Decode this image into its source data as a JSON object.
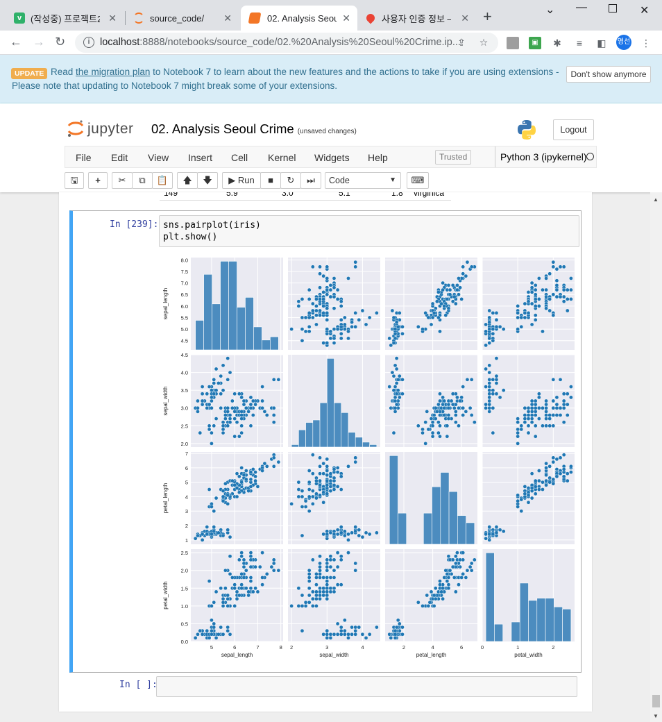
{
  "browser": {
    "tabs": [
      {
        "title": "(작성중) 프로젝트2",
        "favicon_color": "#2fb16a",
        "favicon_glyph": "v"
      },
      {
        "title": "source_code/",
        "favicon_color": "#f37626",
        "favicon_glyph": "jupyter-icon"
      },
      {
        "title": "02. Analysis Seoul",
        "favicon_color": "#f37626",
        "favicon_glyph": "notebook-icon"
      },
      {
        "title": "사용자 인증 정보 –",
        "favicon_color": "#34a853",
        "favicon_glyph": "maps-pin-icon"
      }
    ],
    "url_host": "localhost",
    "url_rest": ":8888/notebooks/source_code/02.%20Analysis%20Seoul%20Crime.ip...",
    "profile_initials": "영선"
  },
  "notice": {
    "badge": "UPDATE",
    "text_before": "Read ",
    "link": "the migration plan",
    "text_after": " to Notebook 7 to learn about the new features and the actions to take if you are using extensions -",
    "line2": "Please note that updating to Notebook 7 might break some of your extensions.",
    "dismiss_label": "Don't show anymore"
  },
  "header": {
    "brand": "jupyter",
    "notebook_title": "02. Analysis Seoul Crime",
    "save_status": "(unsaved changes)",
    "logout_label": "Logout"
  },
  "menubar": {
    "items": [
      "File",
      "Edit",
      "View",
      "Insert",
      "Cell",
      "Kernel",
      "Widgets",
      "Help"
    ],
    "trusted": "Trusted",
    "kernel": "Python 3 (ipykernel)"
  },
  "toolbar": {
    "run_label": "Run",
    "cell_type": "Code"
  },
  "prev_output_row": [
    "149",
    "5.9",
    "3.0",
    "5.1",
    "1.8",
    "virginica"
  ],
  "cells": [
    {
      "prompt": "In [239]:",
      "code": "sns.pairplot(iris)\nplt.show()"
    },
    {
      "prompt": "In [ ]:",
      "code": ""
    }
  ],
  "colors": {
    "accent": "#42a5f5",
    "point": "#1f77b4",
    "hist": "#4c8cbf",
    "panel_bg": "#eaeaf2",
    "notice_bg": "#d9edf7"
  },
  "chart_data": {
    "type": "scatter",
    "title": "",
    "variables": [
      "sepal_length",
      "sepal_width",
      "petal_length",
      "petal_width"
    ],
    "axis_ranges": {
      "sepal_length": [
        4.1,
        8.1
      ],
      "sepal_width": [
        1.9,
        4.5
      ],
      "petal_length": [
        0.7,
        7.1
      ],
      "petal_width": [
        0.0,
        2.6
      ]
    },
    "y_ticks": {
      "sepal_length": [
        "4.5",
        "5.0",
        "5.5",
        "6.0",
        "6.5",
        "7.0",
        "7.5",
        "8.0"
      ],
      "sepal_width": [
        "2.0",
        "2.5",
        "3.0",
        "3.5",
        "4.0",
        "4.5"
      ],
      "petal_length": [
        "1",
        "2",
        "3",
        "4",
        "5",
        "6",
        "7"
      ],
      "petal_width": [
        "0.0",
        "0.5",
        "1.0",
        "1.5",
        "2.0",
        "2.5"
      ]
    },
    "x_ticks": {
      "sepal_length": [
        "5",
        "6",
        "7",
        "8"
      ],
      "sepal_width": [
        "2",
        "3",
        "4"
      ],
      "petal_length": [
        "2",
        "4",
        "6"
      ],
      "petal_width": [
        "0",
        "1",
        "2"
      ]
    },
    "grid": true,
    "diag_hist": {
      "sepal_length": {
        "edges": [
          4.3,
          4.66,
          5.02,
          5.38,
          5.74,
          6.1,
          6.46,
          6.82,
          7.18,
          7.54,
          7.9
        ],
        "counts": [
          9,
          23,
          14,
          27,
          27,
          13,
          16,
          7,
          3,
          4
        ]
      },
      "sepal_width": {
        "edges": [
          2.0,
          2.2,
          2.4,
          2.6,
          2.8,
          3.0,
          3.2,
          3.4,
          3.6,
          3.8,
          4.0,
          4.2,
          4.4
        ],
        "counts": [
          1,
          7,
          10,
          11,
          18,
          36,
          18,
          14,
          6,
          4,
          2,
          1
        ]
      },
      "petal_length": {
        "edges": [
          1.0,
          1.59,
          2.18,
          2.77,
          3.36,
          3.95,
          4.54,
          5.13,
          5.72,
          6.31,
          6.9
        ],
        "counts": [
          37,
          13,
          0,
          0,
          13,
          24,
          30,
          22,
          12,
          9
        ]
      },
      "petal_width": {
        "edges": [
          0.1,
          0.34,
          0.58,
          0.82,
          1.06,
          1.3,
          1.54,
          1.78,
          2.02,
          2.26,
          2.5
        ],
        "counts": [
          41,
          8,
          0,
          9,
          27,
          19,
          20,
          20,
          16,
          15
        ]
      }
    },
    "samples": [
      [
        5.1,
        3.5,
        1.4,
        0.2
      ],
      [
        4.9,
        3.0,
        1.4,
        0.2
      ],
      [
        4.7,
        3.2,
        1.3,
        0.2
      ],
      [
        4.6,
        3.1,
        1.5,
        0.2
      ],
      [
        5.0,
        3.6,
        1.4,
        0.2
      ],
      [
        5.4,
        3.9,
        1.7,
        0.4
      ],
      [
        4.6,
        3.4,
        1.4,
        0.3
      ],
      [
        5.0,
        3.4,
        1.5,
        0.2
      ],
      [
        4.4,
        2.9,
        1.4,
        0.2
      ],
      [
        4.9,
        3.1,
        1.5,
        0.1
      ],
      [
        5.4,
        3.7,
        1.5,
        0.2
      ],
      [
        4.8,
        3.4,
        1.6,
        0.2
      ],
      [
        4.8,
        3.0,
        1.4,
        0.1
      ],
      [
        4.3,
        3.0,
        1.1,
        0.1
      ],
      [
        5.8,
        4.0,
        1.2,
        0.2
      ],
      [
        5.7,
        4.4,
        1.5,
        0.4
      ],
      [
        5.4,
        3.9,
        1.3,
        0.4
      ],
      [
        5.1,
        3.5,
        1.4,
        0.3
      ],
      [
        5.7,
        3.8,
        1.7,
        0.3
      ],
      [
        5.1,
        3.8,
        1.5,
        0.3
      ],
      [
        5.4,
        3.4,
        1.7,
        0.2
      ],
      [
        5.1,
        3.7,
        1.5,
        0.4
      ],
      [
        4.6,
        3.6,
        1.0,
        0.2
      ],
      [
        5.1,
        3.3,
        1.7,
        0.5
      ],
      [
        4.8,
        3.4,
        1.9,
        0.2
      ],
      [
        5.0,
        3.0,
        1.6,
        0.2
      ],
      [
        5.0,
        3.4,
        1.6,
        0.4
      ],
      [
        5.2,
        3.5,
        1.5,
        0.2
      ],
      [
        5.2,
        3.4,
        1.4,
        0.2
      ],
      [
        4.7,
        3.2,
        1.6,
        0.2
      ],
      [
        4.8,
        3.1,
        1.6,
        0.2
      ],
      [
        5.4,
        3.4,
        1.5,
        0.4
      ],
      [
        5.2,
        4.1,
        1.5,
        0.1
      ],
      [
        5.5,
        4.2,
        1.4,
        0.2
      ],
      [
        4.9,
        3.1,
        1.5,
        0.2
      ],
      [
        5.0,
        3.2,
        1.2,
        0.2
      ],
      [
        5.5,
        3.5,
        1.3,
        0.2
      ],
      [
        4.9,
        3.6,
        1.4,
        0.1
      ],
      [
        4.4,
        3.0,
        1.3,
        0.2
      ],
      [
        5.1,
        3.4,
        1.5,
        0.2
      ],
      [
        5.0,
        3.5,
        1.3,
        0.3
      ],
      [
        4.5,
        2.3,
        1.3,
        0.3
      ],
      [
        4.4,
        3.2,
        1.3,
        0.2
      ],
      [
        5.0,
        3.5,
        1.6,
        0.6
      ],
      [
        5.1,
        3.8,
        1.9,
        0.4
      ],
      [
        4.8,
        3.0,
        1.4,
        0.3
      ],
      [
        5.1,
        3.8,
        1.6,
        0.2
      ],
      [
        4.6,
        3.2,
        1.4,
        0.2
      ],
      [
        5.3,
        3.7,
        1.5,
        0.2
      ],
      [
        5.0,
        3.3,
        1.4,
        0.2
      ],
      [
        7.0,
        3.2,
        4.7,
        1.4
      ],
      [
        6.4,
        3.2,
        4.5,
        1.5
      ],
      [
        6.9,
        3.1,
        4.9,
        1.5
      ],
      [
        5.5,
        2.3,
        4.0,
        1.3
      ],
      [
        6.5,
        2.8,
        4.6,
        1.5
      ],
      [
        5.7,
        2.8,
        4.5,
        1.3
      ],
      [
        6.3,
        3.3,
        4.7,
        1.6
      ],
      [
        4.9,
        2.4,
        3.3,
        1.0
      ],
      [
        6.6,
        2.9,
        4.6,
        1.3
      ],
      [
        5.2,
        2.7,
        3.9,
        1.4
      ],
      [
        5.0,
        2.0,
        3.5,
        1.0
      ],
      [
        5.9,
        3.0,
        4.2,
        1.5
      ],
      [
        6.0,
        2.2,
        4.0,
        1.0
      ],
      [
        6.1,
        2.9,
        4.7,
        1.4
      ],
      [
        5.6,
        2.9,
        3.6,
        1.3
      ],
      [
        6.7,
        3.1,
        4.4,
        1.4
      ],
      [
        5.6,
        3.0,
        4.5,
        1.5
      ],
      [
        5.8,
        2.7,
        4.1,
        1.0
      ],
      [
        6.2,
        2.2,
        4.5,
        1.5
      ],
      [
        5.6,
        2.5,
        3.9,
        1.1
      ],
      [
        5.9,
        3.2,
        4.8,
        1.8
      ],
      [
        6.1,
        2.8,
        4.0,
        1.3
      ],
      [
        6.3,
        2.5,
        4.9,
        1.5
      ],
      [
        6.1,
        2.8,
        4.7,
        1.2
      ],
      [
        6.4,
        2.9,
        4.3,
        1.3
      ],
      [
        6.6,
        3.0,
        4.4,
        1.4
      ],
      [
        6.8,
        2.8,
        4.8,
        1.4
      ],
      [
        6.7,
        3.0,
        5.0,
        1.7
      ],
      [
        6.0,
        2.9,
        4.5,
        1.5
      ],
      [
        5.7,
        2.6,
        3.5,
        1.0
      ],
      [
        5.5,
        2.4,
        3.8,
        1.1
      ],
      [
        5.5,
        2.4,
        3.7,
        1.0
      ],
      [
        5.8,
        2.7,
        3.9,
        1.2
      ],
      [
        6.0,
        2.7,
        5.1,
        1.6
      ],
      [
        5.4,
        3.0,
        4.5,
        1.5
      ],
      [
        6.0,
        3.4,
        4.5,
        1.6
      ],
      [
        6.7,
        3.1,
        4.7,
        1.5
      ],
      [
        6.3,
        2.3,
        4.4,
        1.3
      ],
      [
        5.6,
        3.0,
        4.1,
        1.3
      ],
      [
        5.5,
        2.5,
        4.0,
        1.3
      ],
      [
        5.5,
        2.6,
        4.4,
        1.2
      ],
      [
        6.1,
        3.0,
        4.6,
        1.4
      ],
      [
        5.8,
        2.6,
        4.0,
        1.2
      ],
      [
        5.0,
        2.3,
        3.3,
        1.0
      ],
      [
        5.6,
        2.7,
        4.2,
        1.3
      ],
      [
        5.7,
        3.0,
        4.2,
        1.2
      ],
      [
        5.7,
        2.9,
        4.2,
        1.3
      ],
      [
        6.2,
        2.9,
        4.3,
        1.3
      ],
      [
        5.1,
        2.5,
        3.0,
        1.1
      ],
      [
        5.7,
        2.8,
        4.1,
        1.3
      ],
      [
        6.3,
        3.3,
        6.0,
        2.5
      ],
      [
        5.8,
        2.7,
        5.1,
        1.9
      ],
      [
        7.1,
        3.0,
        5.9,
        2.1
      ],
      [
        6.3,
        2.9,
        5.6,
        1.8
      ],
      [
        6.5,
        3.0,
        5.8,
        2.2
      ],
      [
        7.6,
        3.0,
        6.6,
        2.1
      ],
      [
        4.9,
        2.5,
        4.5,
        1.7
      ],
      [
        7.3,
        2.9,
        6.3,
        1.8
      ],
      [
        6.7,
        2.5,
        5.8,
        1.8
      ],
      [
        7.2,
        3.6,
        6.1,
        2.5
      ],
      [
        6.5,
        3.2,
        5.1,
        2.0
      ],
      [
        6.4,
        2.7,
        5.3,
        1.9
      ],
      [
        6.8,
        3.0,
        5.5,
        2.1
      ],
      [
        5.7,
        2.5,
        5.0,
        2.0
      ],
      [
        5.8,
        2.8,
        5.1,
        2.4
      ],
      [
        6.4,
        3.2,
        5.3,
        2.3
      ],
      [
        6.5,
        3.0,
        5.5,
        1.8
      ],
      [
        7.7,
        3.8,
        6.7,
        2.2
      ],
      [
        7.7,
        2.6,
        6.9,
        2.3
      ],
      [
        6.0,
        2.2,
        5.0,
        1.5
      ],
      [
        6.9,
        3.2,
        5.7,
        2.3
      ],
      [
        5.6,
        2.8,
        4.9,
        2.0
      ],
      [
        7.7,
        2.8,
        6.7,
        2.0
      ],
      [
        6.3,
        2.7,
        4.9,
        1.8
      ],
      [
        6.7,
        3.3,
        5.7,
        2.1
      ],
      [
        7.2,
        3.2,
        6.0,
        1.8
      ],
      [
        6.2,
        2.8,
        4.8,
        1.8
      ],
      [
        6.1,
        3.0,
        4.9,
        1.8
      ],
      [
        6.4,
        2.8,
        5.6,
        2.1
      ],
      [
        7.2,
        3.0,
        5.8,
        1.6
      ],
      [
        7.4,
        2.8,
        6.1,
        1.9
      ],
      [
        7.9,
        3.8,
        6.4,
        2.0
      ],
      [
        6.4,
        2.8,
        5.6,
        2.2
      ],
      [
        6.3,
        2.8,
        5.1,
        1.5
      ],
      [
        6.1,
        2.6,
        5.6,
        1.4
      ],
      [
        7.7,
        3.0,
        6.1,
        2.3
      ],
      [
        6.3,
        3.4,
        5.6,
        2.4
      ],
      [
        6.4,
        3.1,
        5.5,
        1.8
      ],
      [
        6.0,
        3.0,
        4.8,
        1.8
      ],
      [
        6.9,
        3.1,
        5.4,
        2.1
      ],
      [
        6.7,
        3.1,
        5.6,
        2.4
      ],
      [
        6.9,
        3.1,
        5.1,
        2.3
      ],
      [
        5.8,
        2.7,
        5.1,
        1.9
      ],
      [
        6.8,
        3.2,
        5.9,
        2.3
      ],
      [
        6.7,
        3.3,
        5.7,
        2.5
      ],
      [
        6.7,
        3.0,
        5.2,
        2.3
      ],
      [
        6.3,
        2.5,
        5.0,
        1.9
      ],
      [
        6.5,
        3.0,
        5.2,
        2.0
      ],
      [
        6.2,
        3.4,
        5.4,
        2.3
      ],
      [
        5.9,
        3.0,
        5.1,
        1.8
      ]
    ]
  }
}
